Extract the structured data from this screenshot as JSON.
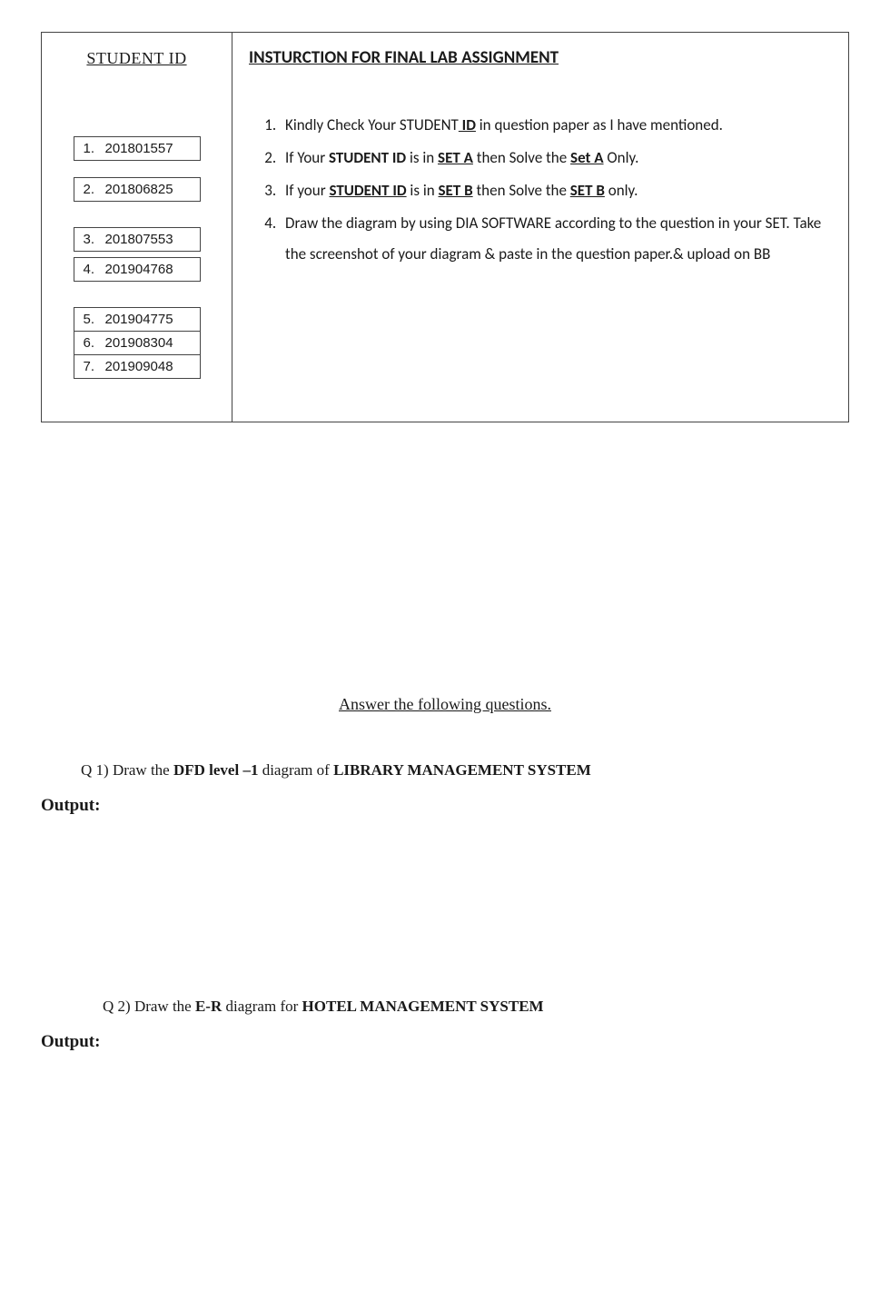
{
  "header": {
    "student_id_label": "STUDENT ID",
    "instruction_title": "INSTURCTION FOR FINAL LAB ASSIGNMENT"
  },
  "student_ids": [
    {
      "n": "1.",
      "id": "201801557"
    },
    {
      "n": "2.",
      "id": "201806825"
    },
    {
      "n": "3.",
      "id": "201807553"
    },
    {
      "n": "4.",
      "id": "201904768"
    },
    {
      "n": "5.",
      "id": "201904775"
    },
    {
      "n": "6.",
      "id": "201908304"
    },
    {
      "n": "7.",
      "id": "201909048"
    }
  ],
  "instructions": {
    "i1_a": "Kindly Check Your STUDENT",
    "i1_idword": " ID",
    "i1_b": " in question paper as I have mentioned.",
    "i2_a": "If Your ",
    "i2_sid": "STUDENT ID",
    "i2_b": " is in ",
    "i2_seta": "SET A",
    "i2_c": " then Solve the ",
    "i2_seta2": "Set A",
    "i2_d": " Only.",
    "i3_a": "If your ",
    "i3_sid": "STUDENT ID",
    "i3_b": " is in ",
    "i3_setb": "SET B",
    "i3_c": " then Solve the ",
    "i3_setb2": "SET B",
    "i3_d": " only.",
    "i4": "Draw the diagram by using DIA SOFTWARE according to the question in your SET. Take the screenshot of your diagram & paste in the question paper.& upload on BB"
  },
  "body": {
    "answer_heading": "Answer the following  questions.",
    "q1_prefix": "Q 1) Draw the ",
    "q1_dfd": "DFD level –1",
    "q1_mid": " diagram of ",
    "q1_sys": "LIBRARY MANAGEMENT SYSTEM",
    "output_label": "Output:",
    "q2_prefix": "Q 2) Draw the ",
    "q2_er": "E-R",
    "q2_mid": " diagram for ",
    "q2_sys": "HOTEL  MANAGEMENT SYSTEM"
  },
  "style": {
    "page_bg": "#ffffff",
    "text_color": "#1a1a1a",
    "border_color": "#444444",
    "serif_font": "Times New Roman",
    "sans_font": "Calibri"
  }
}
